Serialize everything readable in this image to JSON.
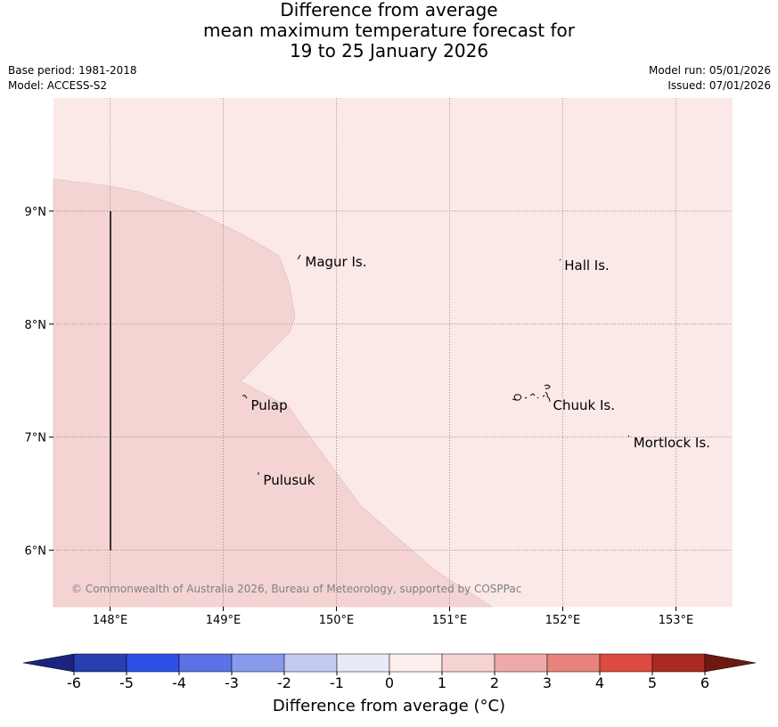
{
  "title": {
    "line1": "Difference from average",
    "line2": "mean maximum temperature forecast for",
    "line3": "19 to 25 January 2026"
  },
  "meta": {
    "base_period": "Base period: 1981-2018",
    "model": "Model: ACCESS-S2",
    "model_run": "Model run: 05/01/2026",
    "issued": "Issued: 07/01/2026"
  },
  "map": {
    "lon_range": [
      147.5,
      153.5
    ],
    "lat_range": [
      5.5,
      10.0
    ],
    "lon_ticks": [
      148,
      149,
      150,
      151,
      152,
      153
    ],
    "lon_tick_labels": [
      "148°E",
      "149°E",
      "150°E",
      "151°E",
      "152°E",
      "153°E"
    ],
    "lat_ticks": [
      9,
      8,
      7,
      6
    ],
    "lat_tick_labels": [
      "9°N",
      "8°N",
      "7°N",
      "6°N"
    ],
    "background_category": "0 to 1",
    "background_color": "#fbe9e8",
    "warm_region_category": "1 to 2",
    "warm_region_color": "#f4d4d3",
    "copyright": "© Commonwealth of Australia 2026, Bureau of Meteorology, supported by COSPPac",
    "places": [
      {
        "name": "Magur Is.",
        "lon": 149.7,
        "lat": 8.55
      },
      {
        "name": "Hall Is.",
        "lon": 151.99,
        "lat": 8.52
      },
      {
        "name": "Pulap",
        "lon": 149.22,
        "lat": 7.28
      },
      {
        "name": "Chuuk Is.",
        "lon": 151.89,
        "lat": 7.28
      },
      {
        "name": "Mortlock Is.",
        "lon": 152.6,
        "lat": 6.95
      },
      {
        "name": "Pulusuk",
        "lon": 149.33,
        "lat": 6.62
      }
    ]
  },
  "colorbar": {
    "label": "Difference from average (°C)",
    "ticks": [
      "-6",
      "-5",
      "-4",
      "-3",
      "-2",
      "-1",
      "0",
      "1",
      "2",
      "3",
      "4",
      "5",
      "6"
    ],
    "bins": [
      {
        "range": "< -6",
        "color": "#1a237e"
      },
      {
        "range": "-6 to -5",
        "color": "#283fb0"
      },
      {
        "range": "-5 to -4",
        "color": "#2e4fe3"
      },
      {
        "range": "-4 to -3",
        "color": "#5a72e6"
      },
      {
        "range": "-3 to -2",
        "color": "#8899ec"
      },
      {
        "range": "-2 to -1",
        "color": "#c3c9f1"
      },
      {
        "range": "-1 to 0",
        "color": "#e8eaf8"
      },
      {
        "range": "0 to 1",
        "color": "#fdeeee"
      },
      {
        "range": "1 to 2",
        "color": "#f5d3d2"
      },
      {
        "range": "2 to 3",
        "color": "#eeaaa8"
      },
      {
        "range": "3 to 4",
        "color": "#e8827d"
      },
      {
        "range": "4 to 5",
        "color": "#dc4a40"
      },
      {
        "range": "5 to 6",
        "color": "#a82a22"
      },
      {
        "range": "> 6",
        "color": "#6e1812"
      }
    ]
  }
}
